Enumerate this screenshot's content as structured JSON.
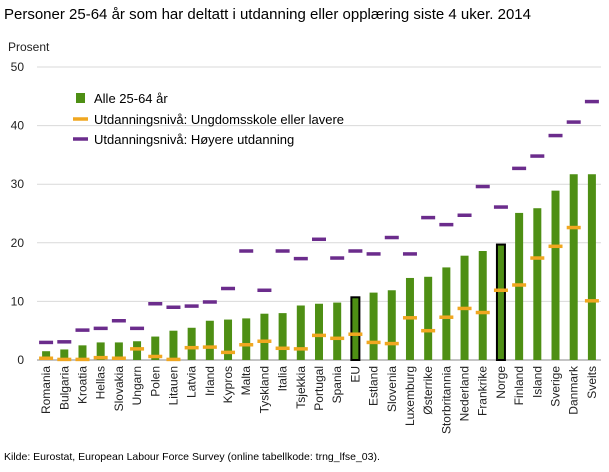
{
  "title": "Personer 25-64 år som har deltatt i utdanning eller opplæring siste 4 uker. 2014",
  "source": "Kilde: Eurostat, European Labour Force Survey (online tabellkode: trng_lfse_03).",
  "colors": {
    "bar": "#4e8f14",
    "bar_highlight_border": "#000000",
    "low_marker": "#f0a720",
    "high_marker": "#6b2c8c",
    "grid": "#d9d9d9"
  },
  "chart_data": {
    "type": "bar",
    "ylabel": "Prosent",
    "ylim": [
      0,
      50
    ],
    "yticks": [
      0,
      10,
      20,
      30,
      40,
      50
    ],
    "grid": true,
    "legend_position": "top-left",
    "highlighted": [
      "EU",
      "Norge"
    ],
    "categories": [
      "Romania",
      "Bulgaria",
      "Kroatia",
      "Hellas",
      "Slovakia",
      "Ungarn",
      "Polen",
      "Litauen",
      "Latvia",
      "Irland",
      "Kypros",
      "Malta",
      "Tyskland",
      "Italia",
      "Tsjekkia",
      "Portugal",
      "Spania",
      "EU",
      "Estland",
      "Slovenia",
      "Luxemburg",
      "Østerrike",
      "Storbritannia",
      "Nederland",
      "Frankrike",
      "Norge",
      "Finland",
      "Island",
      "Sverige",
      "Danmark",
      "Sveits"
    ],
    "series": [
      {
        "name": "Alle 25-64 år",
        "kind": "bar",
        "values": [
          1.5,
          1.8,
          2.5,
          3.0,
          3.0,
          3.2,
          4.0,
          5.0,
          5.5,
          6.7,
          6.9,
          7.1,
          7.9,
          8.0,
          9.3,
          9.6,
          9.8,
          10.7,
          11.5,
          11.9,
          14.0,
          14.2,
          15.8,
          17.8,
          18.6,
          19.7,
          25.1,
          25.9,
          28.9,
          31.7,
          31.7
        ]
      },
      {
        "name": "Utdanningsnivå: Ungdomsskole eller lavere",
        "kind": "marker",
        "values": [
          0.3,
          0.1,
          0.1,
          0.4,
          0.3,
          1.9,
          0.6,
          0.1,
          2.1,
          2.2,
          1.3,
          2.6,
          3.2,
          2.0,
          1.9,
          4.2,
          3.7,
          4.4,
          3.0,
          2.8,
          7.2,
          5.0,
          7.3,
          8.8,
          8.1,
          11.9,
          12.8,
          17.4,
          19.4,
          22.6,
          10.1
        ]
      },
      {
        "name": "Utdanningsnivå: Høyere utdanning",
        "kind": "marker",
        "values": [
          3.0,
          3.1,
          5.1,
          5.4,
          6.7,
          5.4,
          9.6,
          9.0,
          9.2,
          9.9,
          12.2,
          18.6,
          11.9,
          18.6,
          17.3,
          20.6,
          17.4,
          18.6,
          18.1,
          20.9,
          18.1,
          24.3,
          23.1,
          24.7,
          29.6,
          26.1,
          32.7,
          34.8,
          38.3,
          40.6,
          44.1
        ]
      }
    ]
  }
}
